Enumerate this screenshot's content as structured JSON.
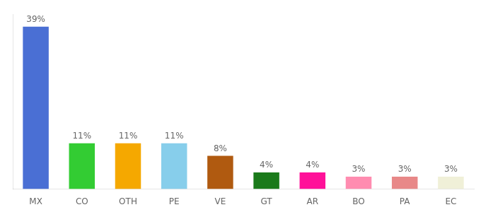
{
  "chart_data": {
    "type": "bar",
    "categories": [
      "MX",
      "CO",
      "OTH",
      "PE",
      "VE",
      "GT",
      "AR",
      "BO",
      "PA",
      "EC"
    ],
    "values": [
      39,
      11,
      11,
      11,
      8,
      4,
      4,
      3,
      3,
      3
    ],
    "value_labels": [
      "39%",
      "11%",
      "11%",
      "11%",
      "8%",
      "4%",
      "4%",
      "3%",
      "3%",
      "3%"
    ],
    "colors": [
      "#4a6fd4",
      "#33cc33",
      "#f5a800",
      "#87ceeb",
      "#b05a10",
      "#1a7a1a",
      "#ff1199",
      "#ff8cb0",
      "#e88888",
      "#f0f0d8"
    ],
    "ylim": [
      0,
      42
    ],
    "grid": false,
    "data_labels": true,
    "tick_labels": "x"
  }
}
